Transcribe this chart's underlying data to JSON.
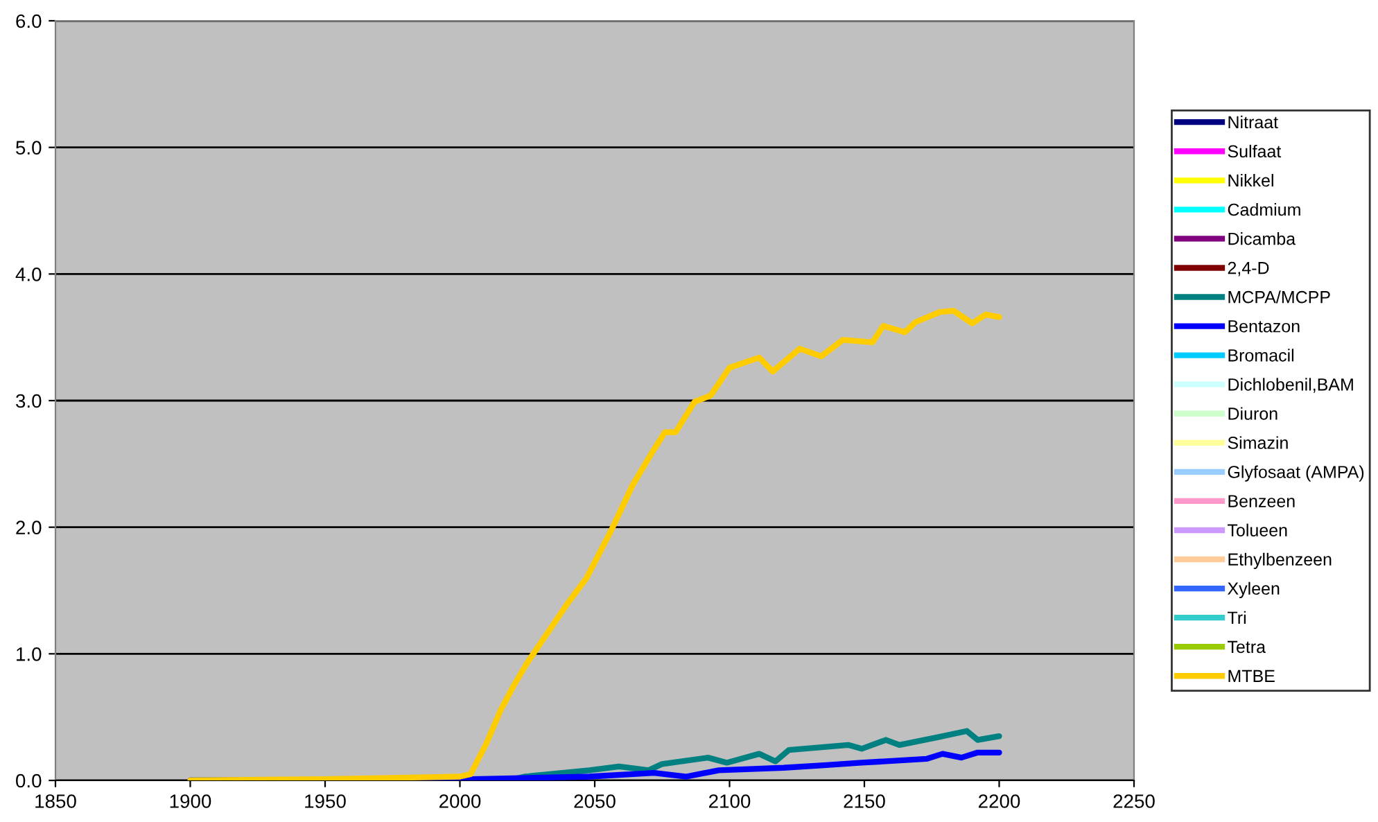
{
  "chart_data": {
    "type": "line",
    "xlim": [
      1850,
      2250
    ],
    "xticks": [
      1850,
      1900,
      1950,
      2000,
      2050,
      2100,
      2150,
      2200,
      2250
    ],
    "ylim": [
      0,
      6
    ],
    "yticks": [
      {
        "value": 0,
        "label": "0.0"
      },
      {
        "value": 1,
        "label": "1.0"
      },
      {
        "value": 2,
        "label": "2.0"
      },
      {
        "value": 3,
        "label": "3.0"
      },
      {
        "value": 4,
        "label": "4.0"
      },
      {
        "value": 5,
        "label": "5.0"
      },
      {
        "value": 6,
        "label": "6.0"
      }
    ],
    "grid": "y",
    "legend": "right",
    "marker": "none",
    "line_style": "solid",
    "series": [
      {
        "name": "Nitraat",
        "color": "#000080"
      },
      {
        "name": "Sulfaat",
        "color": "#ff00ff"
      },
      {
        "name": "Nikkel",
        "color": "#ffff00"
      },
      {
        "name": "Cadmium",
        "color": "#00ffff"
      },
      {
        "name": "Dicamba",
        "color": "#800080"
      },
      {
        "name": "2,4-D",
        "color": "#800000"
      },
      {
        "name": "MCPA/MCPP",
        "color": "#008080",
        "x": [
          1900,
          2000,
          2020,
          2024,
          2048,
          2059,
          2070,
          2075,
          2092,
          2099,
          2111,
          2117,
          2122,
          2144,
          2149,
          2158,
          2163,
          2177,
          2188,
          2192,
          2200
        ],
        "values": [
          0,
          0,
          0.01,
          0.03,
          0.08,
          0.11,
          0.08,
          0.13,
          0.18,
          0.14,
          0.21,
          0.15,
          0.24,
          0.28,
          0.25,
          0.32,
          0.28,
          0.34,
          0.39,
          0.32,
          0.35
        ]
      },
      {
        "name": "Bentazon",
        "color": "#0000ff",
        "x": [
          1900,
          2000,
          2005,
          2048,
          2072,
          2084,
          2096,
          2120,
          2135,
          2149,
          2173,
          2179,
          2186,
          2192,
          2200
        ],
        "values": [
          0,
          0,
          0.01,
          0.03,
          0.06,
          0.03,
          0.08,
          0.1,
          0.12,
          0.14,
          0.17,
          0.21,
          0.18,
          0.22,
          0.22
        ]
      },
      {
        "name": "Bromacil",
        "color": "#00ccff"
      },
      {
        "name": "Dichlobenil,BAM",
        "color": "#ccffff"
      },
      {
        "name": "Diuron",
        "color": "#ccffcc"
      },
      {
        "name": "Simazin",
        "color": "#ffff99"
      },
      {
        "name": "Glyfosaat (AMPA)",
        "color": "#99ccff"
      },
      {
        "name": "Benzeen",
        "color": "#ff99cc"
      },
      {
        "name": "Tolueen",
        "color": "#cc99ff"
      },
      {
        "name": "Ethylbenzeen",
        "color": "#ffcc99"
      },
      {
        "name": "Xyleen",
        "color": "#3366ff"
      },
      {
        "name": "Tri",
        "color": "#33cccc"
      },
      {
        "name": "Tetra",
        "color": "#99cc00"
      },
      {
        "name": "MTBE",
        "color": "#ffcc00",
        "x": [
          1900,
          1950,
          1975,
          2000,
          2004,
          2010,
          2015,
          2020,
          2025,
          2040,
          2047,
          2056,
          2064,
          2071,
          2076,
          2080,
          2087,
          2093,
          2100,
          2111,
          2116,
          2126,
          2134,
          2142,
          2153,
          2157,
          2165,
          2169,
          2178,
          2183,
          2190,
          2195,
          2200
        ],
        "values": [
          0,
          0.01,
          0.02,
          0.03,
          0.05,
          0.3,
          0.55,
          0.75,
          0.93,
          1.4,
          1.6,
          1.97,
          2.33,
          2.58,
          2.75,
          2.75,
          2.99,
          3.04,
          3.26,
          3.34,
          3.23,
          3.41,
          3.35,
          3.48,
          3.46,
          3.59,
          3.54,
          3.62,
          3.7,
          3.71,
          3.61,
          3.68,
          3.66
        ]
      }
    ]
  }
}
